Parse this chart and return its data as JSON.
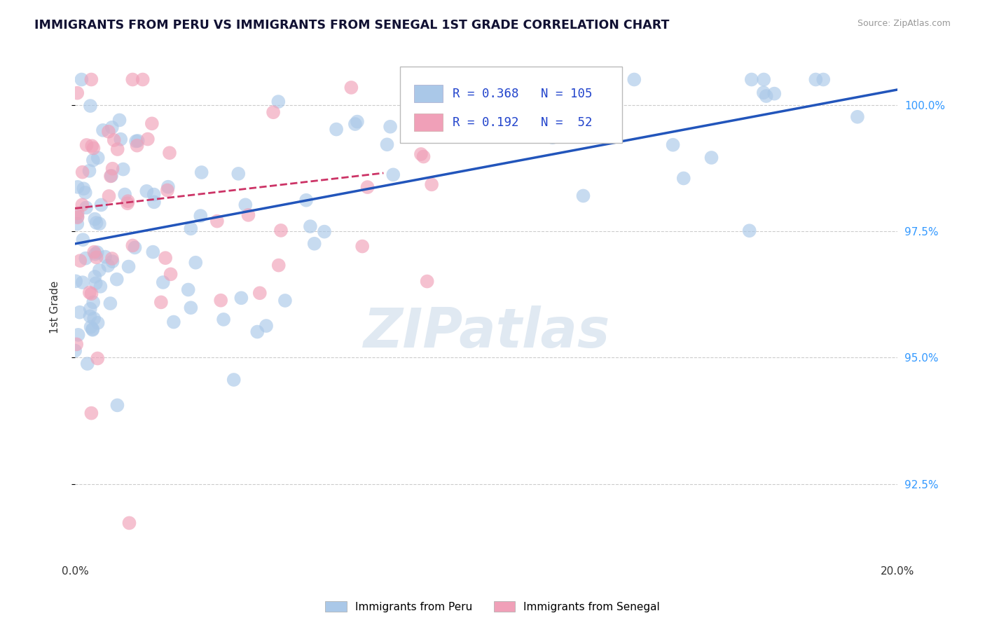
{
  "title": "IMMIGRANTS FROM PERU VS IMMIGRANTS FROM SENEGAL 1ST GRADE CORRELATION CHART",
  "source": "Source: ZipAtlas.com",
  "ylabel": "1st Grade",
  "xlim": [
    0.0,
    0.2
  ],
  "ylim": [
    0.91,
    1.01
  ],
  "yticks": [
    0.925,
    0.95,
    0.975,
    1.0
  ],
  "ytick_labels": [
    "92.5%",
    "95.0%",
    "97.5%",
    "100.0%"
  ],
  "xticks": [
    0.0,
    0.05,
    0.1,
    0.15,
    0.2
  ],
  "xtick_labels": [
    "0.0%",
    "",
    "",
    "",
    "20.0%"
  ],
  "peru_color": "#aac8e8",
  "senegal_color": "#f0a0b8",
  "peru_line_color": "#2255bb",
  "senegal_line_color": "#cc3366",
  "peru_R": 0.368,
  "peru_N": 105,
  "senegal_R": 0.192,
  "senegal_N": 52,
  "background_color": "#ffffff",
  "grid_color": "#cccccc",
  "title_color": "#111133",
  "watermark": "ZIPatlas",
  "legend_peru": "Immigrants from Peru",
  "legend_senegal": "Immigrants from Senegal",
  "peru_line_x0": 0.0,
  "peru_line_x1": 0.2,
  "peru_line_y0": 0.9725,
  "peru_line_y1": 1.003,
  "senegal_line_x0": 0.0,
  "senegal_line_x1": 0.075,
  "senegal_line_y0": 0.9795,
  "senegal_line_y1": 0.9865
}
